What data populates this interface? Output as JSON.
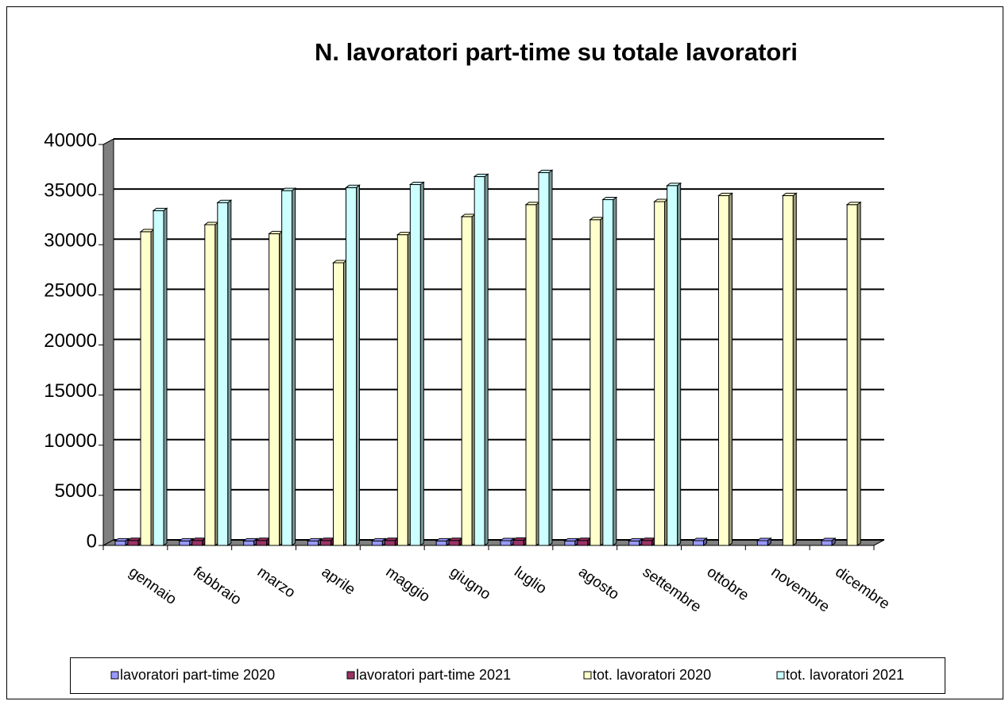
{
  "chart_data": {
    "type": "bar3d",
    "title": "N. lavoratori part-time su totale lavoratori",
    "categories": [
      "gennaio",
      "febbraio",
      "marzo",
      "aprile",
      "maggio",
      "giugno",
      "luglio",
      "agosto",
      "settembre",
      "ottobre",
      "novembre",
      "dicembre"
    ],
    "series": [
      {
        "name": "lavoratori part-time 2020",
        "color": "#9999ff",
        "values": [
          450,
          450,
          450,
          450,
          450,
          450,
          480,
          450,
          450,
          480,
          480,
          480
        ]
      },
      {
        "name": "lavoratori part-time 2021",
        "color": "#993366",
        "values": [
          500,
          500,
          500,
          500,
          500,
          500,
          520,
          500,
          500,
          null,
          null,
          null
        ]
      },
      {
        "name": "tot. lavoratori 2020",
        "color": "#ffffcc",
        "values": [
          31300,
          32000,
          31100,
          28200,
          31000,
          32800,
          34000,
          32500,
          34300,
          34900,
          34900,
          34000
        ]
      },
      {
        "name": "tot. lavoratori 2021",
        "color": "#ccffff",
        "values": [
          33400,
          34200,
          35400,
          35700,
          36000,
          36800,
          37200,
          34500,
          35900,
          null,
          null,
          null
        ]
      }
    ],
    "ylim": [
      0,
      40000
    ],
    "yticks": [
      0,
      5000,
      10000,
      15000,
      20000,
      25000,
      30000,
      35000,
      40000
    ],
    "grid": true
  }
}
